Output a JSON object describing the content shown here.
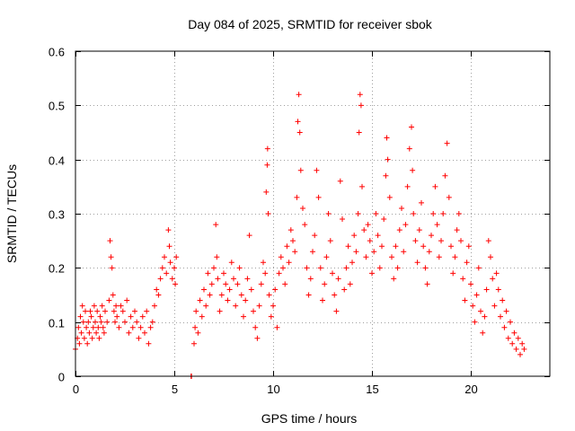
{
  "chart_data": {
    "type": "scatter",
    "title": "Day 084 of 2025, SRMTID for receiver sbok",
    "xlabel": "GPS time / hours",
    "ylabel": "SRMTID / TECUs",
    "xlim": [
      0,
      24
    ],
    "ylim": [
      0,
      0.6
    ],
    "xticks": [
      0,
      5,
      10,
      15,
      20
    ],
    "xtick_labels": [
      "0",
      "5",
      "10",
      "15",
      "20"
    ],
    "yticks": [
      0,
      0.1,
      0.2,
      0.3,
      0.4,
      0.5,
      0.6
    ],
    "ytick_labels": [
      "0",
      "0.1",
      "0.2",
      "0.3",
      "0.4",
      "0.5",
      "0.6"
    ],
    "grid": true,
    "marker": "+",
    "color": "#ff0000",
    "series": [
      {
        "name": "SRMTID",
        "points": [
          [
            0.0,
            0.05
          ],
          [
            0.1,
            0.07
          ],
          [
            0.15,
            0.09
          ],
          [
            0.2,
            0.06
          ],
          [
            0.25,
            0.11
          ],
          [
            0.3,
            0.08
          ],
          [
            0.35,
            0.13
          ],
          [
            0.4,
            0.1
          ],
          [
            0.45,
            0.07
          ],
          [
            0.5,
            0.12
          ],
          [
            0.55,
            0.09
          ],
          [
            0.6,
            0.06
          ],
          [
            0.65,
            0.1
          ],
          [
            0.7,
            0.08
          ],
          [
            0.75,
            0.12
          ],
          [
            0.8,
            0.11
          ],
          [
            0.85,
            0.07
          ],
          [
            0.9,
            0.09
          ],
          [
            0.95,
            0.13
          ],
          [
            1.0,
            0.1
          ],
          [
            1.05,
            0.08
          ],
          [
            1.1,
            0.12
          ],
          [
            1.15,
            0.09
          ],
          [
            1.2,
            0.07
          ],
          [
            1.25,
            0.11
          ],
          [
            1.3,
            0.1
          ],
          [
            1.35,
            0.13
          ],
          [
            1.4,
            0.09
          ],
          [
            1.45,
            0.08
          ],
          [
            1.5,
            0.12
          ],
          [
            1.6,
            0.1
          ],
          [
            1.7,
            0.14
          ],
          [
            1.75,
            0.25
          ],
          [
            1.8,
            0.22
          ],
          [
            1.85,
            0.2
          ],
          [
            1.9,
            0.15
          ],
          [
            1.95,
            0.12
          ],
          [
            2.0,
            0.1
          ],
          [
            2.05,
            0.13
          ],
          [
            2.1,
            0.11
          ],
          [
            2.2,
            0.09
          ],
          [
            2.3,
            0.13
          ],
          [
            2.4,
            0.12
          ],
          [
            2.5,
            0.1
          ],
          [
            2.6,
            0.14
          ],
          [
            2.7,
            0.08
          ],
          [
            2.8,
            0.11
          ],
          [
            2.9,
            0.09
          ],
          [
            3.0,
            0.12
          ],
          [
            3.1,
            0.1
          ],
          [
            3.2,
            0.07
          ],
          [
            3.3,
            0.09
          ],
          [
            3.4,
            0.11
          ],
          [
            3.5,
            0.08
          ],
          [
            3.6,
            0.12
          ],
          [
            3.7,
            0.06
          ],
          [
            3.8,
            0.09
          ],
          [
            3.9,
            0.1
          ],
          [
            4.0,
            0.13
          ],
          [
            4.1,
            0.16
          ],
          [
            4.2,
            0.15
          ],
          [
            4.3,
            0.18
          ],
          [
            4.4,
            0.2
          ],
          [
            4.5,
            0.22
          ],
          [
            4.6,
            0.19
          ],
          [
            4.7,
            0.27
          ],
          [
            4.75,
            0.24
          ],
          [
            4.8,
            0.21
          ],
          [
            4.9,
            0.18
          ],
          [
            5.0,
            0.2
          ],
          [
            5.05,
            0.17
          ],
          [
            5.1,
            0.22
          ],
          [
            5.85,
            0.0
          ],
          [
            5.87,
            0.0
          ],
          [
            6.0,
            0.06
          ],
          [
            6.05,
            0.09
          ],
          [
            6.1,
            0.12
          ],
          [
            6.2,
            0.08
          ],
          [
            6.3,
            0.14
          ],
          [
            6.4,
            0.11
          ],
          [
            6.5,
            0.16
          ],
          [
            6.6,
            0.13
          ],
          [
            6.7,
            0.19
          ],
          [
            6.8,
            0.15
          ],
          [
            6.9,
            0.17
          ],
          [
            7.0,
            0.2
          ],
          [
            7.1,
            0.28
          ],
          [
            7.15,
            0.22
          ],
          [
            7.2,
            0.18
          ],
          [
            7.3,
            0.12
          ],
          [
            7.4,
            0.15
          ],
          [
            7.5,
            0.19
          ],
          [
            7.6,
            0.17
          ],
          [
            7.7,
            0.14
          ],
          [
            7.8,
            0.16
          ],
          [
            7.9,
            0.21
          ],
          [
            8.0,
            0.18
          ],
          [
            8.1,
            0.13
          ],
          [
            8.2,
            0.17
          ],
          [
            8.3,
            0.2
          ],
          [
            8.4,
            0.15
          ],
          [
            8.5,
            0.11
          ],
          [
            8.6,
            0.14
          ],
          [
            8.7,
            0.18
          ],
          [
            8.8,
            0.26
          ],
          [
            8.9,
            0.16
          ],
          [
            9.0,
            0.12
          ],
          [
            9.1,
            0.09
          ],
          [
            9.2,
            0.07
          ],
          [
            9.3,
            0.13
          ],
          [
            9.4,
            0.17
          ],
          [
            9.5,
            0.21
          ],
          [
            9.6,
            0.19
          ],
          [
            9.65,
            0.34
          ],
          [
            9.7,
            0.39
          ],
          [
            9.72,
            0.42
          ],
          [
            9.75,
            0.3
          ],
          [
            9.8,
            0.15
          ],
          [
            9.9,
            0.11
          ],
          [
            10.0,
            0.13
          ],
          [
            10.1,
            0.16
          ],
          [
            10.2,
            0.09
          ],
          [
            10.3,
            0.19
          ],
          [
            10.4,
            0.22
          ],
          [
            10.5,
            0.2
          ],
          [
            10.6,
            0.17
          ],
          [
            10.7,
            0.24
          ],
          [
            10.8,
            0.21
          ],
          [
            10.9,
            0.27
          ],
          [
            11.0,
            0.25
          ],
          [
            11.1,
            0.23
          ],
          [
            11.2,
            0.33
          ],
          [
            11.25,
            0.47
          ],
          [
            11.3,
            0.52
          ],
          [
            11.35,
            0.45
          ],
          [
            11.4,
            0.38
          ],
          [
            11.5,
            0.31
          ],
          [
            11.6,
            0.28
          ],
          [
            11.7,
            0.2
          ],
          [
            11.8,
            0.15
          ],
          [
            11.9,
            0.18
          ],
          [
            12.0,
            0.23
          ],
          [
            12.1,
            0.26
          ],
          [
            12.2,
            0.38
          ],
          [
            12.3,
            0.33
          ],
          [
            12.4,
            0.2
          ],
          [
            12.5,
            0.14
          ],
          [
            12.6,
            0.17
          ],
          [
            12.7,
            0.22
          ],
          [
            12.8,
            0.3
          ],
          [
            12.9,
            0.25
          ],
          [
            13.0,
            0.19
          ],
          [
            13.1,
            0.15
          ],
          [
            13.2,
            0.12
          ],
          [
            13.3,
            0.18
          ],
          [
            13.4,
            0.36
          ],
          [
            13.5,
            0.29
          ],
          [
            13.6,
            0.16
          ],
          [
            13.7,
            0.2
          ],
          [
            13.8,
            0.24
          ],
          [
            13.9,
            0.17
          ],
          [
            14.0,
            0.21
          ],
          [
            14.1,
            0.26
          ],
          [
            14.2,
            0.23
          ],
          [
            14.3,
            0.3
          ],
          [
            14.35,
            0.45
          ],
          [
            14.4,
            0.52
          ],
          [
            14.45,
            0.5
          ],
          [
            14.5,
            0.35
          ],
          [
            14.6,
            0.27
          ],
          [
            14.7,
            0.22
          ],
          [
            14.8,
            0.28
          ],
          [
            14.9,
            0.25
          ],
          [
            15.0,
            0.19
          ],
          [
            15.1,
            0.23
          ],
          [
            15.2,
            0.3
          ],
          [
            15.3,
            0.26
          ],
          [
            15.4,
            0.2
          ],
          [
            15.5,
            0.24
          ],
          [
            15.6,
            0.29
          ],
          [
            15.7,
            0.37
          ],
          [
            15.75,
            0.44
          ],
          [
            15.8,
            0.4
          ],
          [
            15.9,
            0.33
          ],
          [
            16.0,
            0.22
          ],
          [
            16.1,
            0.18
          ],
          [
            16.2,
            0.24
          ],
          [
            16.3,
            0.2
          ],
          [
            16.4,
            0.27
          ],
          [
            16.5,
            0.31
          ],
          [
            16.6,
            0.23
          ],
          [
            16.7,
            0.28
          ],
          [
            16.8,
            0.35
          ],
          [
            16.9,
            0.42
          ],
          [
            17.0,
            0.46
          ],
          [
            17.05,
            0.38
          ],
          [
            17.1,
            0.3
          ],
          [
            17.2,
            0.25
          ],
          [
            17.3,
            0.21
          ],
          [
            17.4,
            0.27
          ],
          [
            17.5,
            0.32
          ],
          [
            17.6,
            0.24
          ],
          [
            17.7,
            0.2
          ],
          [
            17.8,
            0.17
          ],
          [
            17.9,
            0.23
          ],
          [
            18.0,
            0.26
          ],
          [
            18.1,
            0.3
          ],
          [
            18.2,
            0.35
          ],
          [
            18.3,
            0.28
          ],
          [
            18.4,
            0.22
          ],
          [
            18.5,
            0.25
          ],
          [
            18.6,
            0.3
          ],
          [
            18.7,
            0.37
          ],
          [
            18.8,
            0.43
          ],
          [
            18.9,
            0.33
          ],
          [
            19.0,
            0.24
          ],
          [
            19.1,
            0.19
          ],
          [
            19.2,
            0.22
          ],
          [
            19.3,
            0.27
          ],
          [
            19.4,
            0.3
          ],
          [
            19.5,
            0.25
          ],
          [
            19.6,
            0.18
          ],
          [
            19.7,
            0.14
          ],
          [
            19.8,
            0.21
          ],
          [
            19.9,
            0.24
          ],
          [
            20.0,
            0.17
          ],
          [
            20.1,
            0.13
          ],
          [
            20.2,
            0.1
          ],
          [
            20.3,
            0.15
          ],
          [
            20.4,
            0.2
          ],
          [
            20.5,
            0.12
          ],
          [
            20.6,
            0.08
          ],
          [
            20.7,
            0.11
          ],
          [
            20.8,
            0.16
          ],
          [
            20.9,
            0.25
          ],
          [
            21.0,
            0.22
          ],
          [
            21.1,
            0.18
          ],
          [
            21.2,
            0.13
          ],
          [
            21.3,
            0.19
          ],
          [
            21.4,
            0.16
          ],
          [
            21.5,
            0.11
          ],
          [
            21.6,
            0.14
          ],
          [
            21.7,
            0.09
          ],
          [
            21.8,
            0.12
          ],
          [
            21.9,
            0.07
          ],
          [
            22.0,
            0.1
          ],
          [
            22.1,
            0.06
          ],
          [
            22.2,
            0.08
          ],
          [
            22.3,
            0.05
          ],
          [
            22.4,
            0.07
          ],
          [
            22.5,
            0.04
          ],
          [
            22.6,
            0.06
          ],
          [
            22.7,
            0.05
          ]
        ]
      }
    ]
  }
}
